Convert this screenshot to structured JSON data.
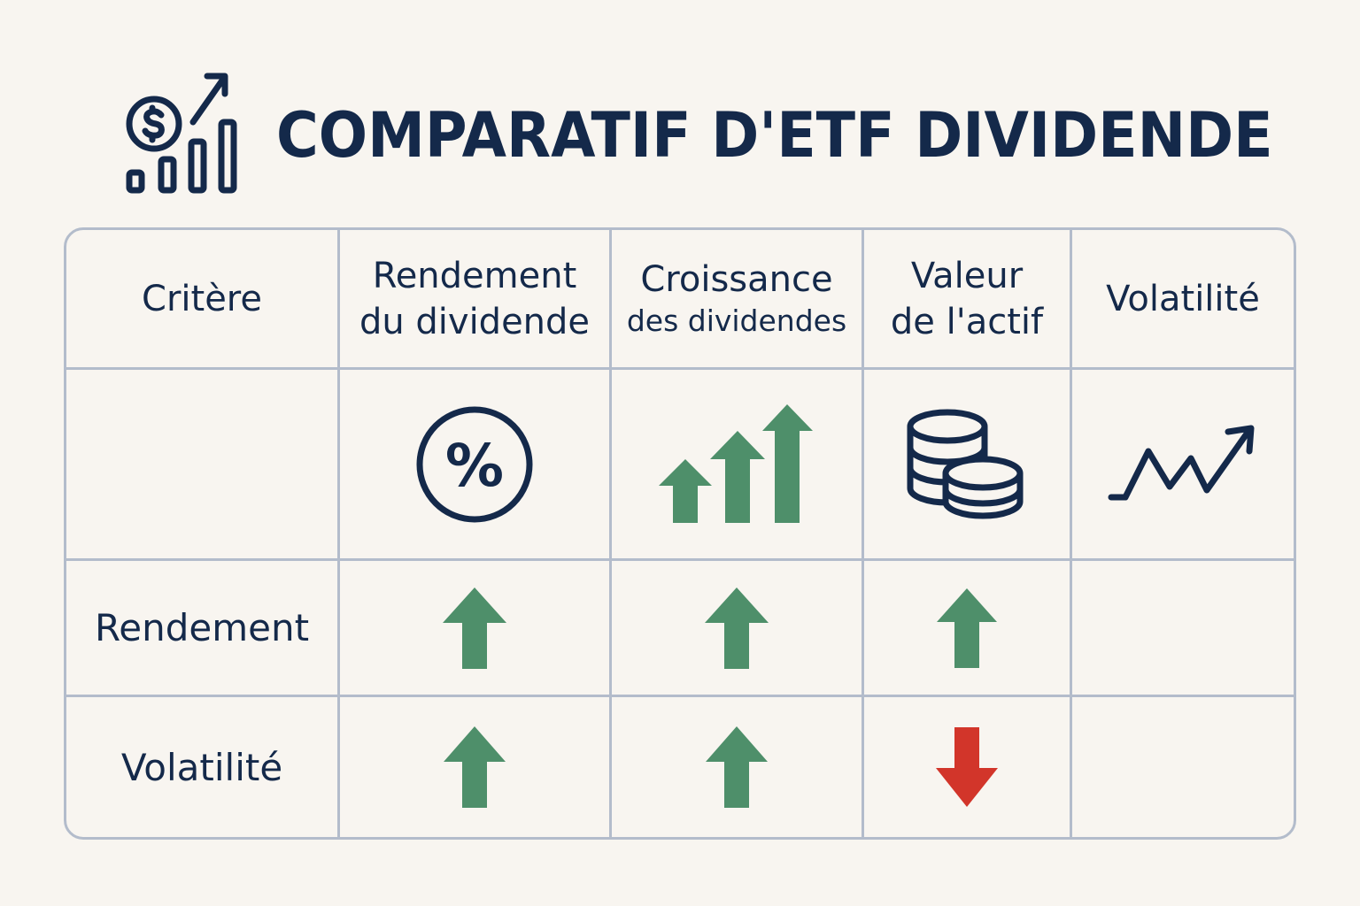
{
  "title": "COMPARATIF D'ETF DIVIDENDE",
  "logo_icon": "dollar-coin-bar-chart-growth-icon",
  "colors": {
    "navy": "#14294a",
    "green": "#4e8f6a",
    "red": "#d2352a",
    "border": "#b3bccb",
    "background": "#f8f5f0"
  },
  "table": {
    "headers": {
      "criterion": "Critère",
      "yield": [
        "Rendement",
        "du dividende"
      ],
      "growth": [
        "Croissance",
        "des dividendes"
      ],
      "asset_value": [
        "Valeur",
        "de l'actif"
      ],
      "volatility": "Volatilité"
    },
    "icon_row": {
      "label": "",
      "icons": [
        "percent-circle-icon",
        "growing-arrows-icon",
        "coin-stacks-icon",
        "zigzag-trend-icon",
        ""
      ]
    },
    "rows": [
      {
        "label": "Rendement",
        "values": [
          "up",
          "up",
          "up",
          ""
        ]
      },
      {
        "label": "Volatilité",
        "values": [
          "up",
          "up",
          "down",
          ""
        ]
      }
    ]
  }
}
